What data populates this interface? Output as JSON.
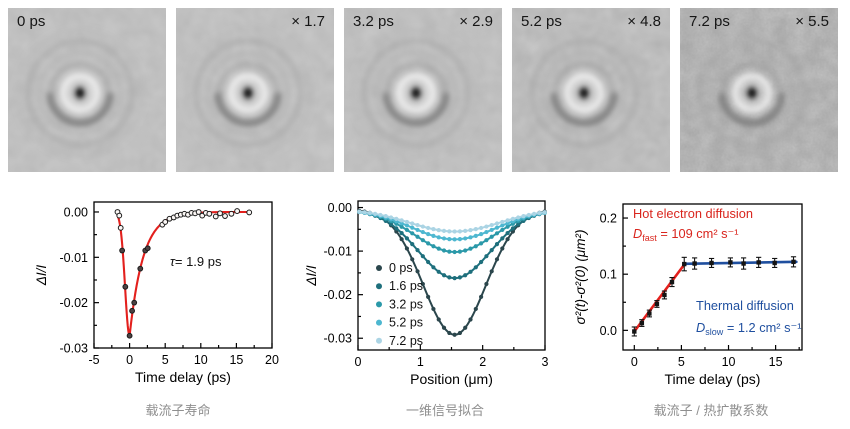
{
  "figure": {
    "panels": [
      {
        "label_left": "0 ps",
        "label_right": ""
      },
      {
        "label_left": "",
        "label_right": "× 1.7"
      },
      {
        "label_left": "3.2 ps",
        "label_right": "× 2.9"
      },
      {
        "label_left": "5.2 ps",
        "label_right": "× 4.8"
      },
      {
        "label_left": "7.2 ps",
        "label_right": "× 5.5"
      }
    ],
    "captions": [
      {
        "text": "载流子寿命"
      },
      {
        "text": "一维信号拟合"
      },
      {
        "text": "载流子 / 热扩散系数"
      }
    ],
    "colors": {
      "fit_red": "#e3201d",
      "fit_blue": "#1f4f9f",
      "annotation_red": "#d9251d",
      "annotation_blue": "#1f4f9f",
      "caption_gray": "#8f8f8f",
      "marker_black": "#141414"
    }
  },
  "chart_data": [
    {
      "type": "scatter",
      "title": "carrier lifetime decay",
      "xlabel": "Time delay (ps)",
      "ylabel": "ΔI/I",
      "xlim": [
        -5,
        20
      ],
      "ylim": [
        -0.03,
        0.0022
      ],
      "xticks": [
        -5,
        0,
        5,
        10,
        15,
        20
      ],
      "yticks": [
        0,
        -0.01,
        -0.02,
        -0.03
      ],
      "ytick_dec": 2,
      "annotation": {
        "symbol": "τ",
        "text": "= 1.9 ps"
      },
      "fit": {
        "model": "gauss-rise-exp-decay",
        "t0": -1.7,
        "rise_sigma": 0.9,
        "peak": -0.0273,
        "tau": 1.9,
        "color": "#e3201d"
      },
      "points": [
        [
          -1.7,
          0.0
        ],
        [
          -1.45,
          -0.0008
        ],
        [
          -1.25,
          -0.0035
        ],
        [
          -1.05,
          -0.0085
        ],
        [
          -0.6,
          -0.0165
        ],
        [
          0,
          -0.0273
        ],
        [
          0.35,
          -0.0218
        ],
        [
          0.65,
          -0.02
        ],
        [
          1.5,
          -0.0125
        ],
        [
          2.2,
          -0.0085
        ],
        [
          2.55,
          -0.008
        ],
        [
          4.6,
          -0.0028
        ],
        [
          5.0,
          -0.0022
        ],
        [
          5.6,
          -0.0015
        ],
        [
          6.2,
          -0.0012
        ],
        [
          6.7,
          -0.0008
        ],
        [
          7.2,
          -0.0006
        ],
        [
          7.7,
          -0.0004
        ],
        [
          8.2,
          -0.0006
        ],
        [
          8.7,
          -0.0002
        ],
        [
          9.2,
          -0.0003
        ],
        [
          9.7,
          0.0
        ],
        [
          10.2,
          -0.0008
        ],
        [
          10.7,
          -0.0002
        ],
        [
          11.2,
          -0.0004
        ],
        [
          12.1,
          -0.001
        ],
        [
          12.7,
          -0.0003
        ],
        [
          13.4,
          -0.0009
        ],
        [
          14.3,
          -0.0004
        ],
        [
          15.1,
          0.0002
        ],
        [
          16.8,
          -0.0001
        ]
      ]
    },
    {
      "type": "line",
      "title": "1D signal Gaussian fits",
      "xlabel": "Position (μm)",
      "ylabel": "ΔI/I",
      "xlim": [
        0,
        3
      ],
      "ylim": [
        -0.0327,
        0.0015
      ],
      "xticks": [
        0,
        1,
        2,
        3
      ],
      "yticks": [
        0,
        -0.01,
        -0.02,
        -0.03
      ],
      "ytick_dec": 2,
      "marker_step": 0.085,
      "legend_position": "left-middle",
      "series": [
        {
          "name": "0 ps",
          "color": "#2b464c",
          "amp": -0.0287,
          "center": 1.55,
          "sigma": 0.5,
          "baseline": -0.0005
        },
        {
          "name": "1.6 ps",
          "color": "#1e6f7c",
          "amp": -0.0157,
          "center": 1.55,
          "sigma": 0.58,
          "baseline": -0.0005
        },
        {
          "name": "3.2 ps",
          "color": "#2b99a9",
          "amp": -0.0097,
          "center": 1.55,
          "sigma": 0.63,
          "baseline": -0.0005
        },
        {
          "name": "5.2 ps",
          "color": "#4db7d0",
          "amp": -0.0068,
          "center": 1.55,
          "sigma": 0.68,
          "baseline": -0.0005
        },
        {
          "name": "7.2 ps",
          "color": "#abd4e4",
          "amp": -0.0051,
          "center": 1.55,
          "sigma": 0.72,
          "baseline": -0.0004
        }
      ]
    },
    {
      "type": "scatter",
      "title": "diffusion coefficients",
      "xlabel": "Time delay (ps)",
      "ylabel": "σ²(t)-σ²(0) (μm²)",
      "xlim": [
        -1.2,
        17.8
      ],
      "ylim": [
        -0.035,
        0.225
      ],
      "xticks": [
        0,
        5,
        10,
        15
      ],
      "yticks": [
        0,
        0.1,
        0.2
      ],
      "ytick_dec": 1,
      "points": [
        [
          0,
          -0.002,
          0.008
        ],
        [
          0.8,
          0.013,
          0.006
        ],
        [
          1.6,
          0.03,
          0.006
        ],
        [
          2.4,
          0.047,
          0.006
        ],
        [
          3.2,
          0.063,
          0.007
        ],
        [
          4.0,
          0.086,
          0.008
        ],
        [
          5.3,
          0.118,
          0.012
        ],
        [
          6.4,
          0.119,
          0.01
        ],
        [
          8.2,
          0.12,
          0.008
        ],
        [
          10.2,
          0.121,
          0.008
        ],
        [
          11.6,
          0.119,
          0.01
        ],
        [
          13.2,
          0.121,
          0.009
        ],
        [
          14.9,
          0.12,
          0.008
        ],
        [
          16.9,
          0.122,
          0.009
        ]
      ],
      "lines": [
        {
          "name": "hot-electron-fit",
          "color": "#e3201d",
          "from": [
            0,
            -0.002
          ],
          "to": [
            5.3,
            0.117
          ]
        },
        {
          "name": "thermal-fit",
          "color": "#1f4f9f",
          "from": [
            5.3,
            0.1185
          ],
          "to": [
            17.2,
            0.122
          ]
        }
      ],
      "annotations": [
        {
          "id": "hot",
          "color": "#d9251d",
          "line1": "Hot electron diffusion",
          "d": "D",
          "sub": "fast",
          "rest": " = 109 cm² s⁻¹"
        },
        {
          "id": "thermal",
          "color": "#1f4f9f",
          "line1": "Thermal diffusion",
          "d": "D",
          "sub": "slow",
          "rest": " = 1.2 cm² s⁻¹"
        }
      ]
    }
  ]
}
